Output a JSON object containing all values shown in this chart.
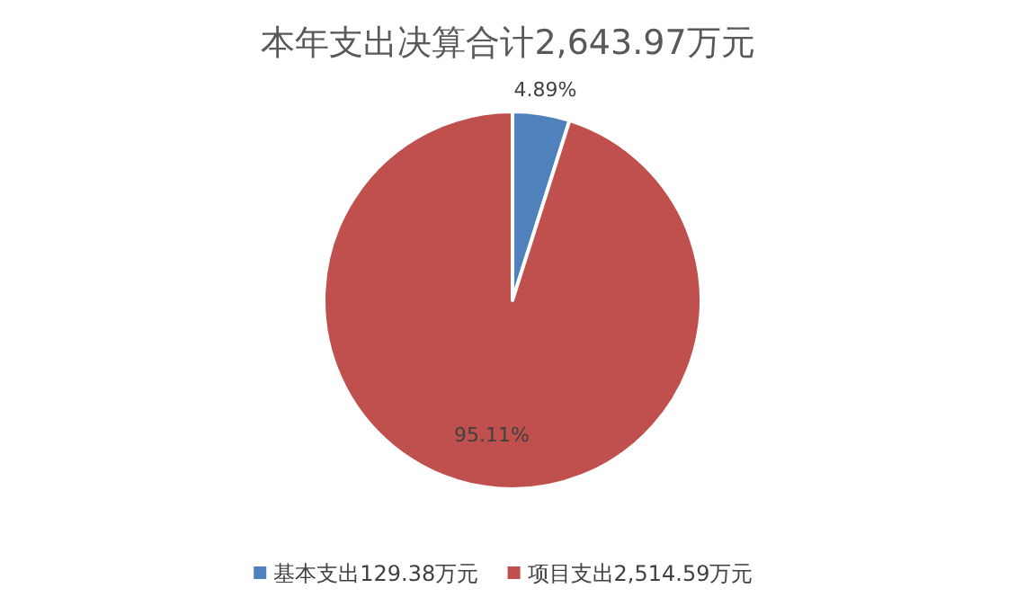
{
  "chart_data": {
    "type": "pie",
    "title": "本年支出决算合计2,643.97万元",
    "categories": [
      "基本支出129.38万元",
      "项目支出2,514.59万元"
    ],
    "values": [
      4.89,
      95.11
    ],
    "colors": [
      "#4f81bd",
      "#c0504d"
    ],
    "value_labels": [
      "4.89%",
      "95.11%"
    ],
    "legend": "bottom"
  }
}
